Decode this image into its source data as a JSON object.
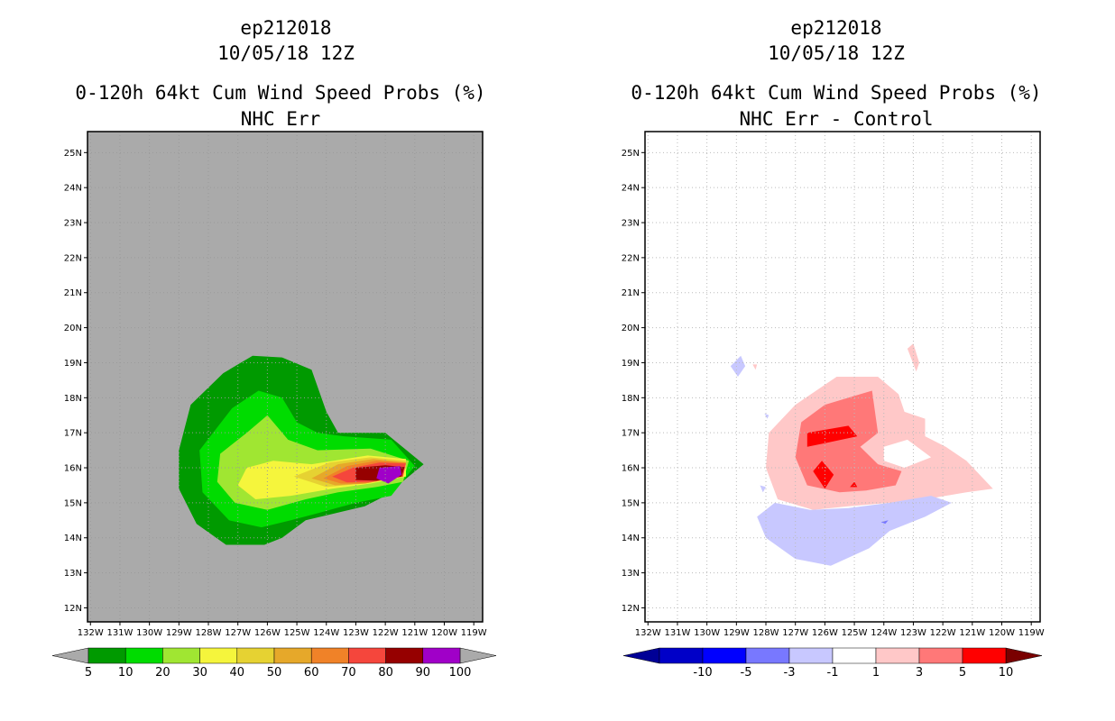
{
  "chart_data": [
    {
      "type": "contour-map",
      "title_lines": [
        "ep212018",
        "10/05/18 12Z",
        "0-120h 64kt Cum Wind Speed Probs (%)",
        "NHC Err"
      ],
      "xlabel": "",
      "ylabel": "",
      "x_ticks": [
        "132W",
        "131W",
        "130W",
        "129W",
        "128W",
        "127W",
        "126W",
        "125W",
        "124W",
        "123W",
        "122W",
        "121W",
        "120W",
        "119W"
      ],
      "y_ticks": [
        "25N",
        "24N",
        "23N",
        "22N",
        "21N",
        "20N",
        "19N",
        "18N",
        "17N",
        "16N",
        "15N",
        "14N",
        "13N",
        "12N"
      ],
      "lon_range": [
        -132.1,
        -118.7
      ],
      "lat_range": [
        11.6,
        25.6
      ],
      "background": "#aaaaaa",
      "grid": "dotted",
      "colorbar": {
        "labels": [
          "5",
          "10",
          "20",
          "30",
          "40",
          "50",
          "60",
          "70",
          "80",
          "90",
          "100"
        ],
        "colors": [
          "#009a00",
          "#00dc00",
          "#a0e632",
          "#f5f53c",
          "#e6d232",
          "#e6a82a",
          "#f08228",
          "#f5463c",
          "#960000",
          "#a000c8"
        ],
        "end_colors": [
          "#aaaaaa",
          "#aaaaaa"
        ]
      },
      "contours": [
        {
          "level": 5,
          "color": "#009a00",
          "points": [
            [
              -127.5,
              18.7
            ],
            [
              -126.5,
              19.2
            ],
            [
              -125.5,
              19.15
            ],
            [
              -124.5,
              18.8
            ],
            [
              -124.0,
              17.6
            ],
            [
              -123.6,
              17.0
            ],
            [
              -122.0,
              17.0
            ],
            [
              -120.7,
              16.1
            ],
            [
              -122.0,
              15.2
            ],
            [
              -122.7,
              14.9
            ],
            [
              -123.7,
              14.7
            ],
            [
              -124.7,
              14.5
            ],
            [
              -125.5,
              14.0
            ],
            [
              -126.1,
              13.8
            ],
            [
              -127.4,
              13.8
            ],
            [
              -128.4,
              14.4
            ],
            [
              -129.0,
              15.4
            ],
            [
              -129.0,
              16.5
            ],
            [
              -128.6,
              17.8
            ]
          ]
        },
        {
          "level": 10,
          "color": "#00dc00",
          "points": [
            [
              -127.2,
              17.7
            ],
            [
              -126.3,
              18.2
            ],
            [
              -125.5,
              18.0
            ],
            [
              -125.0,
              17.3
            ],
            [
              -124.3,
              17.0
            ],
            [
              -123.4,
              16.9
            ],
            [
              -121.8,
              16.8
            ],
            [
              -121.0,
              16.05
            ],
            [
              -121.8,
              15.2
            ],
            [
              -123.0,
              15.0
            ],
            [
              -124.3,
              14.7
            ],
            [
              -125.2,
              14.5
            ],
            [
              -126.2,
              14.3
            ],
            [
              -127.3,
              14.5
            ],
            [
              -128.2,
              15.3
            ],
            [
              -128.3,
              16.5
            ]
          ]
        },
        {
          "level": 20,
          "color": "#a0e632",
          "points": [
            [
              -126.7,
              17.0
            ],
            [
              -126.0,
              17.5
            ],
            [
              -125.3,
              16.8
            ],
            [
              -124.3,
              16.5
            ],
            [
              -122.5,
              16.55
            ],
            [
              -121.2,
              16.2
            ],
            [
              -121.4,
              15.6
            ],
            [
              -122.3,
              15.45
            ],
            [
              -123.6,
              15.3
            ],
            [
              -124.7,
              15.1
            ],
            [
              -126.0,
              14.8
            ],
            [
              -127.1,
              15.0
            ],
            [
              -127.7,
              15.6
            ],
            [
              -127.6,
              16.4
            ]
          ]
        },
        {
          "level": 30,
          "color": "#f5f53c",
          "points": [
            [
              -126.7,
              16.0
            ],
            [
              -125.8,
              16.2
            ],
            [
              -124.5,
              16.1
            ],
            [
              -122.6,
              16.35
            ],
            [
              -121.3,
              16.25
            ],
            [
              -121.3,
              15.75
            ],
            [
              -122.5,
              15.55
            ],
            [
              -123.8,
              15.4
            ],
            [
              -125.2,
              15.2
            ],
            [
              -126.4,
              15.1
            ],
            [
              -127.0,
              15.5
            ]
          ]
        },
        {
          "level": 40,
          "color": "#e6d232",
          "points": [
            [
              -125.1,
              15.75
            ],
            [
              -123.9,
              16.15
            ],
            [
              -122.5,
              16.3
            ],
            [
              -121.3,
              16.2
            ],
            [
              -121.4,
              15.75
            ],
            [
              -122.7,
              15.55
            ],
            [
              -124.0,
              15.45
            ]
          ]
        },
        {
          "level": 50,
          "color": "#e6a82a",
          "points": [
            [
              -124.5,
              15.7
            ],
            [
              -123.6,
              16.1
            ],
            [
              -122.4,
              16.25
            ],
            [
              -121.3,
              16.15
            ],
            [
              -121.4,
              15.75
            ],
            [
              -122.7,
              15.55
            ],
            [
              -123.7,
              15.5
            ]
          ]
        },
        {
          "level": 60,
          "color": "#f08228",
          "points": [
            [
              -124.1,
              15.7
            ],
            [
              -123.3,
              16.05
            ],
            [
              -122.3,
              16.2
            ],
            [
              -121.3,
              16.15
            ],
            [
              -121.4,
              15.75
            ],
            [
              -122.7,
              15.55
            ],
            [
              -123.5,
              15.55
            ]
          ]
        },
        {
          "level": 70,
          "color": "#f5463c",
          "points": [
            [
              -123.8,
              15.75
            ],
            [
              -123.1,
              16.0
            ],
            [
              -122.2,
              16.15
            ],
            [
              -121.3,
              16.12
            ],
            [
              -121.4,
              15.75
            ],
            [
              -122.5,
              15.6
            ],
            [
              -123.3,
              15.58
            ]
          ]
        },
        {
          "level": 80,
          "color": "#960000",
          "points": [
            [
              -123.0,
              16.0
            ],
            [
              -122.0,
              16.07
            ],
            [
              -121.35,
              16.02
            ],
            [
              -121.45,
              15.75
            ],
            [
              -122.3,
              15.63
            ],
            [
              -123.0,
              15.65
            ]
          ]
        },
        {
          "level": 90,
          "color": "#a000c8",
          "points": [
            [
              -122.2,
              16.0
            ],
            [
              -121.5,
              16.05
            ],
            [
              -121.45,
              15.8
            ],
            [
              -121.9,
              15.55
            ],
            [
              -122.3,
              15.7
            ]
          ]
        }
      ]
    },
    {
      "type": "contour-map",
      "title_lines": [
        "ep212018",
        "10/05/18 12Z",
        "0-120h 64kt Cum Wind Speed Probs (%)",
        "NHC Err - Control"
      ],
      "xlabel": "",
      "ylabel": "",
      "x_ticks": [
        "132W",
        "131W",
        "130W",
        "129W",
        "128W",
        "127W",
        "126W",
        "125W",
        "124W",
        "123W",
        "122W",
        "121W",
        "120W",
        "119W"
      ],
      "y_ticks": [
        "25N",
        "24N",
        "23N",
        "22N",
        "21N",
        "20N",
        "19N",
        "18N",
        "17N",
        "16N",
        "15N",
        "14N",
        "13N",
        "12N"
      ],
      "lon_range": [
        -132.1,
        -118.7
      ],
      "lat_range": [
        11.6,
        25.6
      ],
      "background": "#ffffff",
      "grid": "dotted",
      "colorbar": {
        "labels": [
          "-10",
          "-5",
          "-3",
          "-1",
          "1",
          "3",
          "5",
          "10"
        ],
        "colors": [
          "#0000c8",
          "#0000ff",
          "#7878ff",
          "#c8c8ff",
          "#ffffff",
          "#ffc8c8",
          "#ff7878",
          "#ff0000"
        ],
        "end_colors": [
          "#000096",
          "#7a0000"
        ]
      },
      "contours": [
        {
          "level": 1,
          "color": "#ffc8c8",
          "points": [
            [
              -127.0,
              17.8
            ],
            [
              -125.6,
              18.6
            ],
            [
              -124.2,
              18.6
            ],
            [
              -123.5,
              18.1
            ],
            [
              -123.3,
              17.6
            ],
            [
              -122.6,
              17.4
            ],
            [
              -122.6,
              16.9
            ],
            [
              -121.9,
              16.6
            ],
            [
              -121.2,
              16.2
            ],
            [
              -120.3,
              15.4
            ],
            [
              -121.2,
              15.3
            ],
            [
              -122.6,
              15.1
            ],
            [
              -123.8,
              15.0
            ],
            [
              -125.2,
              14.9
            ],
            [
              -126.4,
              14.8
            ],
            [
              -127.6,
              15.1
            ],
            [
              -128.0,
              16.0
            ],
            [
              -127.9,
              17.0
            ]
          ],
          "holes": [
            [
              [
                -124.0,
                16.6
              ],
              [
                -123.2,
                16.8
              ],
              [
                -122.4,
                16.3
              ],
              [
                -123.3,
                16.0
              ],
              [
                -124.0,
                16.2
              ]
            ]
          ]
        },
        {
          "level": 1,
          "color": "#ffc8c8",
          "points": [
            [
              -123.0,
              19.55
            ],
            [
              -122.8,
              19.0
            ],
            [
              -122.9,
              18.75
            ],
            [
              -123.2,
              19.4
            ]
          ]
        },
        {
          "level": 1,
          "color": "#ffc8c8",
          "points": [
            [
              -128.45,
              18.95
            ],
            [
              -128.3,
              18.95
            ],
            [
              -128.35,
              18.8
            ]
          ]
        },
        {
          "level": 3,
          "color": "#ff7878",
          "points": [
            [
              -126.8,
              17.3
            ],
            [
              -126.0,
              17.8
            ],
            [
              -125.2,
              18.0
            ],
            [
              -124.4,
              18.2
            ],
            [
              -124.2,
              17.0
            ],
            [
              -124.8,
              16.6
            ],
            [
              -124.2,
              16.1
            ],
            [
              -123.4,
              15.9
            ],
            [
              -123.6,
              15.5
            ],
            [
              -124.6,
              15.35
            ],
            [
              -125.5,
              15.3
            ],
            [
              -126.6,
              15.5
            ],
            [
              -127.0,
              16.3
            ]
          ]
        },
        {
          "level": 5,
          "color": "#ff0000",
          "points": [
            [
              -126.6,
              17.0
            ],
            [
              -125.2,
              17.2
            ],
            [
              -124.9,
              16.9
            ],
            [
              -126.0,
              16.7
            ],
            [
              -126.6,
              16.6
            ]
          ]
        },
        {
          "level": 5,
          "color": "#ff0000",
          "points": [
            [
              -126.1,
              16.2
            ],
            [
              -125.7,
              15.8
            ],
            [
              -126.0,
              15.4
            ],
            [
              -126.4,
              15.9
            ]
          ]
        },
        {
          "level": 5,
          "color": "#ff0000",
          "points": [
            [
              -125.0,
              15.6
            ],
            [
              -124.9,
              15.45
            ],
            [
              -125.15,
              15.45
            ]
          ]
        },
        {
          "level": -1,
          "color": "#c8c8ff",
          "points": [
            [
              -127.7,
              15.0
            ],
            [
              -126.5,
              14.8
            ],
            [
              -125.2,
              14.85
            ],
            [
              -123.8,
              15.0
            ],
            [
              -122.4,
              15.2
            ],
            [
              -121.7,
              15.0
            ],
            [
              -122.6,
              14.6
            ],
            [
              -123.8,
              14.2
            ],
            [
              -124.5,
              13.7
            ],
            [
              -125.8,
              13.2
            ],
            [
              -127.0,
              13.4
            ],
            [
              -128.0,
              14.0
            ],
            [
              -128.3,
              14.6
            ]
          ]
        },
        {
          "level": -3,
          "color": "#7878ff",
          "points": [
            [
              -124.1,
              14.45
            ],
            [
              -123.85,
              14.5
            ],
            [
              -123.95,
              14.4
            ]
          ]
        },
        {
          "level": -1,
          "color": "#c8c8ff",
          "points": [
            [
              -129.2,
              18.9
            ],
            [
              -128.85,
              19.2
            ],
            [
              -128.7,
              18.9
            ],
            [
              -128.95,
              18.6
            ]
          ]
        },
        {
          "level": -1,
          "color": "#c8c8ff",
          "points": [
            [
              -128.05,
              17.55
            ],
            [
              -127.9,
              17.5
            ],
            [
              -127.95,
              17.4
            ]
          ]
        },
        {
          "level": -1,
          "color": "#c8c8ff",
          "points": [
            [
              -128.2,
              15.5
            ],
            [
              -128.0,
              15.45
            ],
            [
              -128.1,
              15.3
            ]
          ]
        }
      ]
    }
  ]
}
